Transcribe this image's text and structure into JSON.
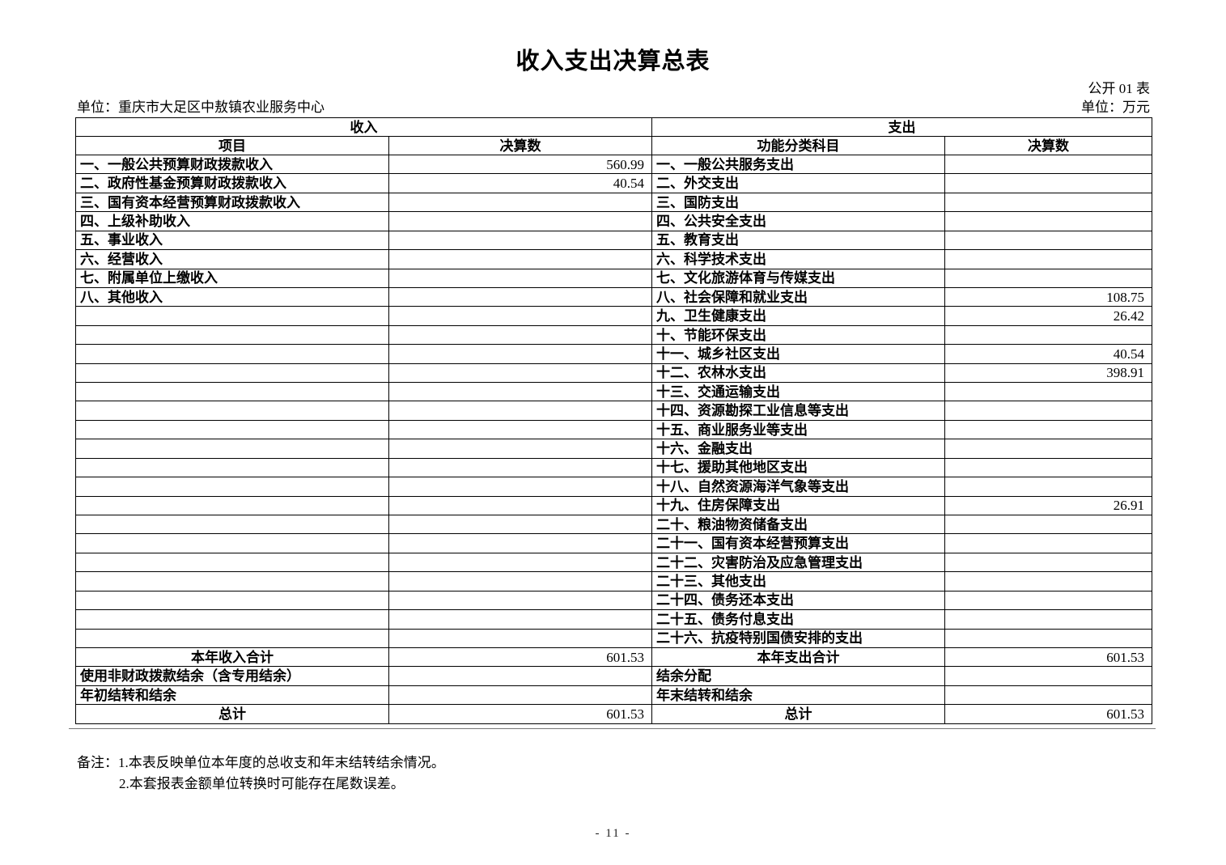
{
  "page": {
    "title": "收入支出决算总表",
    "table_code": "公开 01 表",
    "org_label": "单位：重庆市大足区中敖镇农业服务中心",
    "unit_label": "单位：万元",
    "page_number": "- 11 -"
  },
  "table": {
    "income_header": "收入",
    "expense_header": "支出",
    "income_cols": [
      "项目",
      "决算数"
    ],
    "expense_cols": [
      "功能分类科目",
      "决算数"
    ],
    "rows": [
      {
        "income_item": "一、一般公共预算财政拨款收入",
        "income_value": "560.99",
        "expense_item": "一、一般公共服务支出",
        "expense_value": ""
      },
      {
        "income_item": "二、政府性基金预算财政拨款收入",
        "income_value": "40.54",
        "expense_item": "二、外交支出",
        "expense_value": ""
      },
      {
        "income_item": "三、国有资本经营预算财政拨款收入",
        "income_value": "",
        "expense_item": "三、国防支出",
        "expense_value": ""
      },
      {
        "income_item": "四、上级补助收入",
        "income_value": "",
        "expense_item": "四、公共安全支出",
        "expense_value": ""
      },
      {
        "income_item": "五、事业收入",
        "income_value": "",
        "expense_item": "五、教育支出",
        "expense_value": ""
      },
      {
        "income_item": "六、经营收入",
        "income_value": "",
        "expense_item": "六、科学技术支出",
        "expense_value": ""
      },
      {
        "income_item": "七、附属单位上缴收入",
        "income_value": "",
        "expense_item": "七、文化旅游体育与传媒支出",
        "expense_value": ""
      },
      {
        "income_item": "八、其他收入",
        "income_value": "",
        "expense_item": "八、社会保障和就业支出",
        "expense_value": "108.75"
      },
      {
        "income_item": "",
        "income_value": "",
        "expense_item": "九、卫生健康支出",
        "expense_value": "26.42"
      },
      {
        "income_item": "",
        "income_value": "",
        "expense_item": "十、节能环保支出",
        "expense_value": ""
      },
      {
        "income_item": "",
        "income_value": "",
        "expense_item": "十一、城乡社区支出",
        "expense_value": "40.54"
      },
      {
        "income_item": "",
        "income_value": "",
        "expense_item": "十二、农林水支出",
        "expense_value": "398.91"
      },
      {
        "income_item": "",
        "income_value": "",
        "expense_item": "十三、交通运输支出",
        "expense_value": ""
      },
      {
        "income_item": "",
        "income_value": "",
        "expense_item": "十四、资源勘探工业信息等支出",
        "expense_value": ""
      },
      {
        "income_item": "",
        "income_value": "",
        "expense_item": "十五、商业服务业等支出",
        "expense_value": ""
      },
      {
        "income_item": "",
        "income_value": "",
        "expense_item": "十六、金融支出",
        "expense_value": ""
      },
      {
        "income_item": "",
        "income_value": "",
        "expense_item": "十七、援助其他地区支出",
        "expense_value": ""
      },
      {
        "income_item": "",
        "income_value": "",
        "expense_item": "十八、自然资源海洋气象等支出",
        "expense_value": ""
      },
      {
        "income_item": "",
        "income_value": "",
        "expense_item": "十九、住房保障支出",
        "expense_value": "26.91"
      },
      {
        "income_item": "",
        "income_value": "",
        "expense_item": "二十、粮油物资储备支出",
        "expense_value": ""
      },
      {
        "income_item": "",
        "income_value": "",
        "expense_item": "二十一、国有资本经营预算支出",
        "expense_value": ""
      },
      {
        "income_item": "",
        "income_value": "",
        "expense_item": "二十二、灾害防治及应急管理支出",
        "expense_value": ""
      },
      {
        "income_item": "",
        "income_value": "",
        "expense_item": "二十三、其他支出",
        "expense_value": ""
      },
      {
        "income_item": "",
        "income_value": "",
        "expense_item": "二十四、债务还本支出",
        "expense_value": ""
      },
      {
        "income_item": "",
        "income_value": "",
        "expense_item": "二十五、债务付息支出",
        "expense_value": ""
      },
      {
        "income_item": "",
        "income_value": "",
        "expense_item": "二十六、抗疫特别国债安排的支出",
        "expense_value": ""
      }
    ],
    "summary_rows": [
      {
        "income_item": "本年收入合计",
        "income_value": "601.53",
        "expense_item": "本年支出合计",
        "expense_value": "601.53",
        "align": "center"
      },
      {
        "income_item": "使用非财政拨款结余（含专用结余）",
        "income_value": "",
        "expense_item": "结余分配",
        "expense_value": "",
        "align": "left"
      },
      {
        "income_item": "年初结转和结余",
        "income_value": "",
        "expense_item": "年末结转和结余",
        "expense_value": "",
        "align": "left"
      },
      {
        "income_item": "总计",
        "income_value": "601.53",
        "expense_item": "总计",
        "expense_value": "601.53",
        "align": "center"
      }
    ]
  },
  "notes": {
    "label": "备注：",
    "lines": [
      "1.本表反映单位本年度的总收支和年末结转结余情况。",
      "2.本套报表金额单位转换时可能存在尾数误差。"
    ]
  }
}
